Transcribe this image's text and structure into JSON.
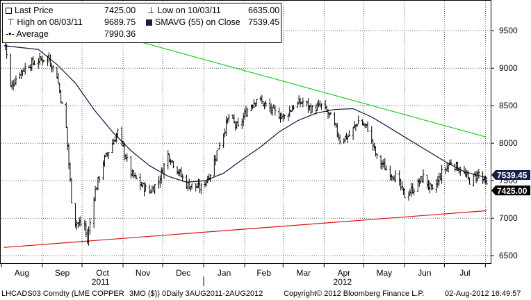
{
  "legend": {
    "last_price_label": "Last Price",
    "last_price_value": "7425.00",
    "low_label": "Low on 10/03/11",
    "low_value": "6635.00",
    "high_label": "High on 08/03/11",
    "high_value": "9689.75",
    "sma_label": "SMAVG (55) on Close",
    "sma_value": "7539.45",
    "average_label": "Average",
    "average_value": "7990.36"
  },
  "footer": {
    "ticker": "LHCADS03 Comdty (LME COPPER",
    "params": "3MO ($))  0Daily 3AUG2011-2AUG2012",
    "copyright": "Copyright© 2012 Bloomberg Finance L.P.",
    "timestamp": "02-Aug-2012 16:49:57"
  },
  "colors": {
    "price": "#000000",
    "sma": "#1a1f4a",
    "upper_trend": "#22cc22",
    "lower_trend": "#dd1111",
    "grid": "#000000",
    "tag_bg": "#000000",
    "tag_text": "#ffffff"
  },
  "chart_data": {
    "type": "line",
    "title": "",
    "ylim": [
      6400,
      9900
    ],
    "y_ticks": [
      6500,
      7000,
      7500,
      8000,
      8500,
      9000,
      9500
    ],
    "y_tick_labels": [
      "6500",
      "7000",
      "7500",
      "8000",
      "8500",
      "9000",
      "9500"
    ],
    "months": [
      "Aug",
      "Sep",
      "Oct",
      "Nov",
      "Dec",
      "Jan",
      "Feb",
      "Mar",
      "Apr",
      "May",
      "Jun",
      "Jul"
    ],
    "years": [
      "2011",
      "2012"
    ],
    "grid": "vertical dotted at month starts, horizontal dotted at ticks",
    "series": [
      {
        "name": "Last Price",
        "x": [
          "2011-08-03",
          "2011-08-08",
          "2011-08-15",
          "2011-08-22",
          "2011-08-29",
          "2011-09-05",
          "2011-09-12",
          "2011-09-19",
          "2011-09-23",
          "2011-09-26",
          "2011-10-03",
          "2011-10-05",
          "2011-10-10",
          "2011-10-17",
          "2011-10-24",
          "2011-10-28",
          "2011-11-07",
          "2011-11-14",
          "2011-11-21",
          "2011-11-28",
          "2011-12-05",
          "2011-12-12",
          "2011-12-19",
          "2011-12-30",
          "2012-01-06",
          "2012-01-13",
          "2012-01-20",
          "2012-01-27",
          "2012-02-03",
          "2012-02-10",
          "2012-02-17",
          "2012-02-24",
          "2012-03-02",
          "2012-03-09",
          "2012-03-16",
          "2012-03-23",
          "2012-03-30",
          "2012-04-06",
          "2012-04-13",
          "2012-04-20",
          "2012-04-27",
          "2012-05-04",
          "2012-05-11",
          "2012-05-18",
          "2012-05-25",
          "2012-06-01",
          "2012-06-08",
          "2012-06-15",
          "2012-06-22",
          "2012-06-29",
          "2012-07-06",
          "2012-07-13",
          "2012-07-20",
          "2012-07-27",
          "2012-08-02"
        ],
        "values": [
          9450,
          8750,
          8950,
          9050,
          9100,
          9150,
          8900,
          8200,
          7250,
          6950,
          6900,
          6700,
          7300,
          7750,
          8000,
          8150,
          7600,
          7450,
          7350,
          7500,
          7850,
          7650,
          7450,
          7400,
          7600,
          8000,
          8350,
          8200,
          8450,
          8600,
          8500,
          8400,
          8350,
          8500,
          8550,
          8450,
          8500,
          8350,
          8050,
          8100,
          8300,
          8200,
          7800,
          7650,
          7550,
          7300,
          7400,
          7550,
          7350,
          7600,
          7750,
          7650,
          7500,
          7600,
          7425
        ]
      },
      {
        "name": "SMAVG (55) on Close",
        "x": [
          "2011-08-03",
          "2011-08-29",
          "2011-09-12",
          "2011-09-26",
          "2011-10-10",
          "2011-10-24",
          "2011-11-07",
          "2011-11-21",
          "2011-12-05",
          "2011-12-19",
          "2012-01-02",
          "2012-01-16",
          "2012-01-30",
          "2012-02-13",
          "2012-02-27",
          "2012-03-12",
          "2012-03-26",
          "2012-04-09",
          "2012-04-23",
          "2012-05-07",
          "2012-05-21",
          "2012-06-04",
          "2012-06-18",
          "2012-07-02",
          "2012-07-16",
          "2012-08-02"
        ],
        "values": [
          9300,
          9250,
          9050,
          8800,
          8450,
          8150,
          7900,
          7700,
          7560,
          7480,
          7500,
          7600,
          7780,
          7950,
          8150,
          8300,
          8400,
          8450,
          8460,
          8350,
          8200,
          8050,
          7900,
          7750,
          7620,
          7539.45
        ]
      },
      {
        "name": "Upper trendline",
        "x": [
          "2011-08-03",
          "2012-08-02"
        ],
        "values": [
          9850,
          8080
        ]
      },
      {
        "name": "Lower trendline",
        "x": [
          "2011-08-03",
          "2012-08-02"
        ],
        "values": [
          6610,
          7100
        ]
      }
    ],
    "price_tags": [
      "7539.45",
      "7425.00"
    ]
  }
}
